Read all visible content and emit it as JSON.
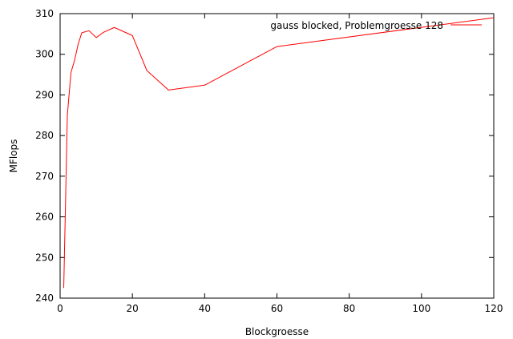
{
  "chart_data": {
    "type": "line",
    "title": "",
    "xlabel": "Blockgroesse",
    "ylabel": "MFlops",
    "xlim": [
      0,
      120
    ],
    "ylim": [
      240,
      310
    ],
    "xticks": [
      0,
      20,
      40,
      60,
      80,
      100,
      120
    ],
    "yticks": [
      240,
      250,
      260,
      270,
      280,
      290,
      300,
      310
    ],
    "grid": false,
    "legend_position": "top-right",
    "series": [
      {
        "name": "gauss blocked, Problemgroesse 128",
        "color": "#ff0000",
        "x": [
          1,
          2,
          3,
          4,
          5,
          6,
          8,
          10,
          12,
          15,
          20,
          24,
          30,
          40,
          60,
          120
        ],
        "y": [
          242.5,
          285,
          295.5,
          298.5,
          302.5,
          305.3,
          305.8,
          304.1,
          305.4,
          306.6,
          304.6,
          296,
          291.2,
          292.4,
          301.9,
          309
        ]
      }
    ]
  }
}
